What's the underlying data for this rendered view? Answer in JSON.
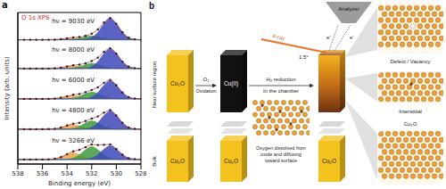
{
  "panel_label": "a",
  "chart_data": {
    "type": "line",
    "title": "O 1s XPS",
    "x_label": "Binding energy (eV)",
    "y_label": "Intensity (arb. units)",
    "xlim": [
      538,
      528
    ],
    "xticks": [
      538,
      536,
      534,
      532,
      530,
      528
    ],
    "ylim": [
      0,
      10
    ],
    "tick_labels": "x",
    "grid": false,
    "x": [
      538,
      537.5,
      537,
      536.5,
      536,
      535.5,
      535,
      534.5,
      534,
      533.5,
      533,
      532.5,
      532,
      531.5,
      531,
      530.5,
      530,
      529.5,
      529,
      528.5,
      528
    ],
    "series": [
      {
        "name": "hν = 9030 eV",
        "color": "#1c1c3a",
        "marker": "circle",
        "background": 8.2,
        "values": [
          8.2,
          8.2,
          8.2,
          8.2,
          8.2,
          8.2,
          8.21,
          8.24,
          8.3,
          8.35,
          8.38,
          8.46,
          8.6,
          8.88,
          9.34,
          9.63,
          9.26,
          8.69,
          8.34,
          8.23,
          8.2
        ],
        "components": [
          {
            "color": "#e9a64c",
            "values": [
              8.2,
              8.2,
              8.2,
              8.2,
              8.2,
              8.2,
              8.21,
              8.24,
              8.29,
              8.32,
              8.29,
              8.24,
              8.21,
              8.2,
              8.2,
              8.2,
              8.2,
              8.2,
              8.2,
              8.2,
              8.2
            ]
          },
          {
            "color": "#3c9a3c",
            "values": [
              8.2,
              8.2,
              8.2,
              8.2,
              8.2,
              8.2,
              8.2,
              8.2,
              8.21,
              8.23,
              8.29,
              8.39,
              8.45,
              8.39,
              8.29,
              8.23,
              8.21,
              8.2,
              8.2,
              8.2,
              8.2
            ]
          },
          {
            "color": "#3d48b8",
            "values": [
              8.2,
              8.2,
              8.2,
              8.2,
              8.2,
              8.2,
              8.2,
              8.2,
              8.2,
              8.2,
              8.2,
              8.23,
              8.34,
              8.69,
              9.25,
              9.6,
              9.25,
              8.69,
              8.34,
              8.23,
              8.2
            ]
          }
        ]
      },
      {
        "name": "hν = 8000 eV",
        "color": "#1c1c3a",
        "marker": "circle",
        "background": 6.3,
        "values": [
          6.3,
          6.3,
          6.3,
          6.3,
          6.3,
          6.3,
          6.32,
          6.36,
          6.44,
          6.52,
          6.56,
          6.65,
          6.8,
          7.02,
          7.4,
          7.64,
          7.28,
          6.76,
          6.43,
          6.33,
          6.3
        ],
        "components": [
          {
            "color": "#e9a64c",
            "values": [
              6.3,
              6.3,
              6.3,
              6.3,
              6.3,
              6.3,
              6.32,
              6.36,
              6.44,
              6.48,
              6.44,
              6.36,
              6.32,
              6.3,
              6.3,
              6.3,
              6.3,
              6.3,
              6.3,
              6.3,
              6.3
            ]
          },
          {
            "color": "#3c9a3c",
            "values": [
              6.3,
              6.3,
              6.3,
              6.3,
              6.3,
              6.3,
              6.3,
              6.3,
              6.31,
              6.34,
              6.42,
              6.56,
              6.65,
              6.56,
              6.42,
              6.34,
              6.31,
              6.3,
              6.3,
              6.3,
              6.3
            ]
          },
          {
            "color": "#3d48b8",
            "values": [
              6.3,
              6.3,
              6.3,
              6.3,
              6.3,
              6.3,
              6.3,
              6.3,
              6.3,
              6.3,
              6.3,
              6.33,
              6.43,
              6.76,
              7.28,
              7.6,
              7.28,
              6.76,
              6.43,
              6.33,
              6.3
            ]
          }
        ]
      },
      {
        "name": "hν = 6000 eV",
        "color": "#1c1c3a",
        "marker": "circle",
        "background": 4.3,
        "values": [
          4.3,
          4.3,
          4.3,
          4.3,
          4.3,
          4.3,
          4.32,
          4.38,
          4.47,
          4.57,
          4.62,
          4.74,
          4.89,
          5.06,
          5.36,
          5.55,
          5.21,
          4.72,
          4.42,
          4.32,
          4.3
        ],
        "components": [
          {
            "color": "#e9a64c",
            "values": [
              4.3,
              4.3,
              4.3,
              4.3,
              4.3,
              4.3,
              4.32,
              4.38,
              4.47,
              4.52,
              4.47,
              4.38,
              4.32,
              4.3,
              4.3,
              4.3,
              4.3,
              4.3,
              4.3,
              4.3,
              4.3
            ]
          },
          {
            "color": "#3c9a3c",
            "values": [
              4.3,
              4.3,
              4.3,
              4.3,
              4.3,
              4.3,
              4.3,
              4.3,
              4.31,
              4.35,
              4.46,
              4.64,
              4.75,
              4.64,
              4.46,
              4.35,
              4.31,
              4.3,
              4.3,
              4.3,
              4.3
            ]
          },
          {
            "color": "#3d48b8",
            "values": [
              4.3,
              4.3,
              4.3,
              4.3,
              4.3,
              4.3,
              4.3,
              4.3,
              4.3,
              4.3,
              4.3,
              4.32,
              4.42,
              4.72,
              5.2,
              5.5,
              5.2,
              4.72,
              4.42,
              4.32,
              4.3
            ]
          }
        ]
      },
      {
        "name": "hν = 4800 eV",
        "color": "#1c1c3a",
        "marker": "circle",
        "background": 2.3,
        "values": [
          2.3,
          2.3,
          2.3,
          2.3,
          2.3,
          2.31,
          2.33,
          2.41,
          2.54,
          2.66,
          2.72,
          2.84,
          3.0,
          3.14,
          3.39,
          3.56,
          3.21,
          2.72,
          2.42,
          2.32,
          2.3
        ],
        "components": [
          {
            "color": "#e9a64c",
            "values": [
              2.3,
              2.3,
              2.3,
              2.3,
              2.3,
              2.31,
              2.33,
              2.41,
              2.53,
              2.6,
              2.53,
              2.41,
              2.33,
              2.31,
              2.3,
              2.3,
              2.3,
              2.3,
              2.3,
              2.3,
              2.3
            ]
          },
          {
            "color": "#3c9a3c",
            "values": [
              2.3,
              2.3,
              2.3,
              2.3,
              2.3,
              2.3,
              2.3,
              2.3,
              2.31,
              2.36,
              2.49,
              2.71,
              2.85,
              2.71,
              2.49,
              2.36,
              2.31,
              2.3,
              2.3,
              2.3,
              2.3
            ]
          },
          {
            "color": "#3d48b8",
            "values": [
              2.3,
              2.3,
              2.3,
              2.3,
              2.3,
              2.3,
              2.3,
              2.3,
              2.3,
              2.3,
              2.3,
              2.32,
              2.42,
              2.72,
              3.2,
              3.5,
              3.2,
              2.72,
              2.42,
              2.32,
              2.3
            ]
          }
        ]
      },
      {
        "name": "hν = 3266 eV",
        "color": "#1c1c3a",
        "marker": "circle",
        "background": 0.3,
        "values": [
          0.3,
          0.3,
          0.3,
          0.3,
          0.3,
          0.31,
          0.35,
          0.46,
          0.65,
          0.84,
          0.94,
          1.11,
          1.29,
          1.26,
          1.27,
          1.29,
          0.99,
          0.62,
          0.39,
          0.32,
          0.3
        ],
        "components": [
          {
            "color": "#e9a64c",
            "values": [
              0.3,
              0.3,
              0.3,
              0.3,
              0.3,
              0.31,
              0.35,
              0.46,
              0.64,
              0.75,
              0.64,
              0.46,
              0.35,
              0.31,
              0.3,
              0.3,
              0.3,
              0.3,
              0.3,
              0.3,
              0.3
            ]
          },
          {
            "color": "#3c9a3c",
            "values": [
              0.3,
              0.3,
              0.3,
              0.3,
              0.3,
              0.3,
              0.3,
              0.3,
              0.32,
              0.39,
              0.6,
              0.94,
              1.15,
              0.94,
              0.6,
              0.39,
              0.32,
              0.3,
              0.3,
              0.3,
              0.3
            ]
          },
          {
            "color": "#3d48b8",
            "values": [
              0.3,
              0.3,
              0.3,
              0.3,
              0.3,
              0.3,
              0.3,
              0.3,
              0.3,
              0.3,
              0.3,
              0.32,
              0.39,
              0.62,
              0.98,
              1.2,
              0.98,
              0.62,
              0.39,
              0.32,
              0.3
            ]
          }
        ]
      }
    ]
  },
  "diagram": {
    "label": "b",
    "regions": [
      "Near surface region",
      "Bulk"
    ],
    "blocks": [
      {
        "top": "Cu₂O",
        "bottom": "Cu₂O"
      },
      {
        "top": "Cu(II)",
        "bottom": "Cu₂O"
      },
      {
        "bottom": "Cu₂O"
      }
    ],
    "arrows": [
      {
        "above": "O₂",
        "below": "Oxidation"
      },
      {
        "above": "H₂ reduction",
        "below": "In the chamber"
      }
    ],
    "caption": "Oxygen dissolved from oxide and diffusing toward surface",
    "beam": "X-ray",
    "angle": "1.5°",
    "analyzer": "Analyzer",
    "electrons": [
      "e⁻",
      "e⁻"
    ],
    "insets": [
      "Defect / Vacancy",
      "Interstitial",
      "Cu₂O"
    ]
  }
}
